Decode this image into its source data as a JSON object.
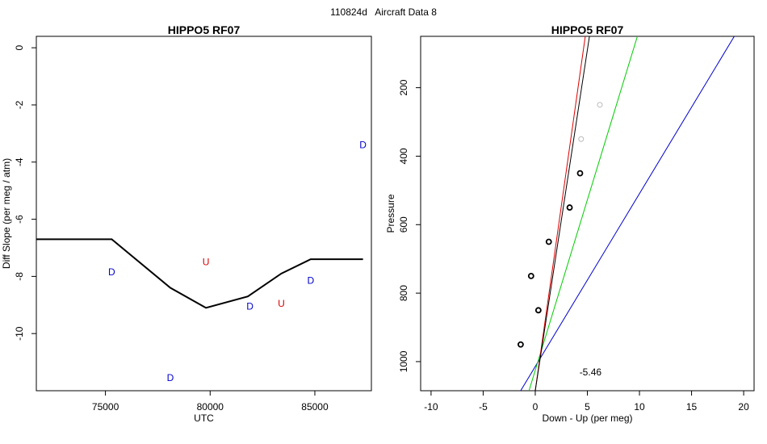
{
  "page_title": "110824d   Aircraft Data 8",
  "chart_data": [
    {
      "type": "line",
      "title": "HIPPO5 RF07",
      "xlabel": "UTC",
      "ylabel": "Diff Slope (per meg / atm)",
      "xlim": [
        71700,
        87700
      ],
      "ylim": [
        -12.0,
        0.4
      ],
      "xticks": [
        75000,
        80000,
        85000
      ],
      "yticks": [
        0,
        -2,
        -4,
        -6,
        -8,
        -10
      ],
      "grid": false,
      "line_color": "#000000",
      "line": {
        "x": [
          71700,
          75300,
          78100,
          79800,
          81800,
          83400,
          84800,
          87300
        ],
        "y": [
          -6.7,
          -6.7,
          -8.4,
          -9.1,
          -8.7,
          -7.9,
          -7.4,
          -7.4
        ]
      },
      "markers": [
        {
          "label": "D",
          "x": 75300,
          "y": -7.85,
          "color": "#0000cc"
        },
        {
          "label": "D",
          "x": 78100,
          "y": -11.55,
          "color": "#0000cc"
        },
        {
          "label": "U",
          "x": 79800,
          "y": -7.5,
          "color": "#dd0000"
        },
        {
          "label": "D",
          "x": 81900,
          "y": -9.05,
          "color": "#0000cc"
        },
        {
          "label": "U",
          "x": 83400,
          "y": -8.95,
          "color": "#dd0000"
        },
        {
          "label": "D",
          "x": 84800,
          "y": -8.15,
          "color": "#0000cc"
        },
        {
          "label": "D",
          "x": 87300,
          "y": -3.4,
          "color": "#0000cc"
        }
      ]
    },
    {
      "type": "scatter",
      "title": "HIPPO5 RF07",
      "xlabel": "Down - Up (per meg)",
      "ylabel": "Pressure",
      "xlim": [
        -11,
        21
      ],
      "ylim": [
        1085,
        50
      ],
      "y_axis_inverted": true,
      "xticks": [
        -10,
        -5,
        0,
        5,
        10,
        15,
        20
      ],
      "yticks": [
        200,
        400,
        600,
        800,
        1000
      ],
      "grid": false,
      "annotation": "-5.46",
      "annotation_position": {
        "x": 5.3,
        "y": 1040
      },
      "points": [
        {
          "x": 6.2,
          "y": 250,
          "color": "#bbbbbb"
        },
        {
          "x": 4.4,
          "y": 350,
          "color": "#bbbbbb"
        },
        {
          "x": 4.3,
          "y": 450,
          "color": "#000000"
        },
        {
          "x": 3.3,
          "y": 550,
          "color": "#000000"
        },
        {
          "x": 1.3,
          "y": 650,
          "color": "#000000"
        },
        {
          "x": -0.4,
          "y": 750,
          "color": "#000000"
        },
        {
          "x": 0.3,
          "y": 850,
          "color": "#000000"
        },
        {
          "x": -1.4,
          "y": 950,
          "color": "#000000"
        }
      ],
      "lines": [
        {
          "color": "#0000cc",
          "p1": [
            -1.4,
            1085
          ],
          "p2": [
            19.1,
            50
          ]
        },
        {
          "color": "#00cc00",
          "p1": [
            -0.6,
            1085
          ],
          "p2": [
            9.8,
            50
          ]
        },
        {
          "color": "#dd0000",
          "p1": [
            0.0,
            1085
          ],
          "p2": [
            4.8,
            50
          ]
        },
        {
          "color": "#000000",
          "p1": [
            0.0,
            1085
          ],
          "p2": [
            5.2,
            50
          ]
        }
      ]
    }
  ]
}
